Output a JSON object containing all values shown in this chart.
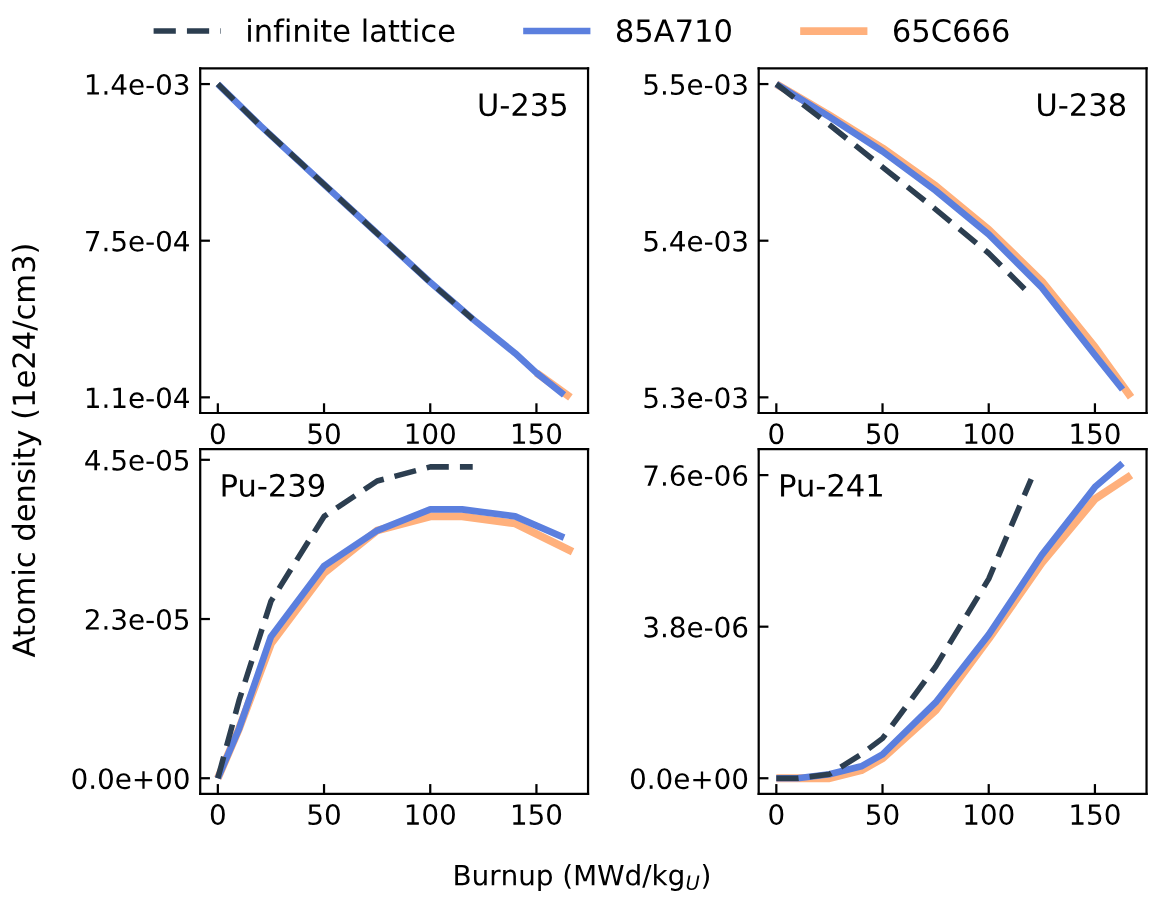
{
  "chart_data": [
    {
      "type": "line",
      "title": "U-235",
      "xlabel": "Burnup (MWd/kg$_{U}$)",
      "ylabel": "Atomic density (1e24/cm3)",
      "legend": "top",
      "xlim": [
        -8.3,
        174.3
      ],
      "xticks": [
        0,
        50,
        100,
        150
      ],
      "ylim": [
        4.6e-05,
        0.001454
      ],
      "yticks": [
        {
          "value": 0.00139,
          "label": "1.4e-03"
        },
        {
          "value": 0.00075,
          "label": "7.5e-04"
        },
        {
          "value": 0.00011,
          "label": "1.1e-04"
        }
      ],
      "series": [
        {
          "name": "infinite lattice",
          "color": "#2c3e50",
          "line_style": "dashed",
          "x": [
            0,
            20,
            40,
            60,
            80,
            100,
            120
          ],
          "values": [
            0.00139,
            0.00122,
            0.00106,
            0.0009,
            0.00074,
            0.00058,
            0.00043
          ]
        },
        {
          "name": "85A710",
          "color": "#5b7fde",
          "line_style": "solid",
          "x": [
            0,
            20,
            40,
            60,
            80,
            100,
            120,
            140,
            150,
            163
          ],
          "values": [
            0.00139,
            0.00122,
            0.00106,
            0.0009,
            0.00074,
            0.00058,
            0.00043,
            0.00029,
            0.00021,
            0.00012
          ]
        },
        {
          "name": "65C666",
          "color": "#ffb07c",
          "line_style": "solid",
          "x": [
            150,
            166
          ],
          "values": [
            0.00021,
            0.00011
          ]
        }
      ]
    },
    {
      "type": "line",
      "title": "U-238",
      "xlim": [
        -8.3,
        174.3
      ],
      "xticks": [
        0,
        50,
        100,
        150
      ],
      "ylim": [
        0.00529,
        0.00551
      ],
      "yticks": [
        {
          "value": 0.0055,
          "label": "5.5e-03"
        },
        {
          "value": 0.0054,
          "label": "5.4e-03"
        },
        {
          "value": 0.0053,
          "label": "5.3e-03"
        }
      ],
      "series": [
        {
          "color": "#2c3e50",
          "line_style": "dashed",
          "x": [
            0,
            25,
            50,
            75,
            100,
            120
          ],
          "values": [
            0.0055,
            0.005474,
            0.005447,
            0.00542,
            0.005392,
            0.005365
          ]
        },
        {
          "color": "#5b7fde",
          "line_style": "solid",
          "x": [
            0,
            25,
            50,
            75,
            100,
            125,
            150,
            163
          ],
          "values": [
            0.0055,
            0.005479,
            0.005457,
            0.005432,
            0.005404,
            0.00537,
            0.005327,
            0.005305
          ]
        },
        {
          "color": "#ffb07c",
          "line_style": "solid",
          "x": [
            0,
            25,
            50,
            75,
            100,
            125,
            150,
            167
          ],
          "values": [
            0.0055,
            0.00548,
            0.005459,
            0.005435,
            0.005407,
            0.005374,
            0.005332,
            0.0053
          ]
        }
      ]
    },
    {
      "type": "line",
      "title": "Pu-239",
      "xlim": [
        -8.3,
        174.3
      ],
      "xticks": [
        0,
        50,
        100,
        150
      ],
      "ylim": [
        -2.2e-06,
        4.65e-05
      ],
      "yticks": [
        {
          "value": 4.5e-05,
          "label": "4.5e-05"
        },
        {
          "value": 2.25e-05,
          "label": "2.3e-05"
        },
        {
          "value": 0,
          "label": "0.0e+00"
        }
      ],
      "series": [
        {
          "color": "#2c3e50",
          "line_style": "dashed",
          "x": [
            0,
            10,
            25,
            50,
            75,
            100,
            110,
            120
          ],
          "values": [
            0,
            1.1e-05,
            2.5e-05,
            3.7e-05,
            4.2e-05,
            4.4e-05,
            4.4e-05,
            4.4e-05
          ]
        },
        {
          "color": "#5b7fde",
          "line_style": "solid",
          "x": [
            0,
            10,
            25,
            50,
            75,
            100,
            115,
            140,
            163
          ],
          "values": [
            0,
            7e-06,
            2e-05,
            3e-05,
            3.5e-05,
            3.8e-05,
            3.8e-05,
            3.7e-05,
            3.4e-05
          ]
        },
        {
          "color": "#ffb07c",
          "line_style": "solid",
          "x": [
            0,
            10,
            25,
            50,
            75,
            100,
            115,
            140,
            167
          ],
          "values": [
            0,
            7e-06,
            1.9e-05,
            2.9e-05,
            3.5e-05,
            3.7e-05,
            3.7e-05,
            3.6e-05,
            3.2e-05
          ]
        }
      ]
    },
    {
      "type": "line",
      "title": "Pu-241",
      "xlim": [
        -8.3,
        174.3
      ],
      "xticks": [
        0,
        50,
        100,
        150
      ],
      "ylim": [
        -3.9e-07,
        8.25e-06
      ],
      "yticks": [
        {
          "value": 7.6e-06,
          "label": "7.6e-06"
        },
        {
          "value": 3.8e-06,
          "label": "3.8e-06"
        },
        {
          "value": 0,
          "label": "0.0e+00"
        }
      ],
      "series": [
        {
          "color": "#2c3e50",
          "line_style": "dashed",
          "x": [
            0,
            10,
            25,
            40,
            50,
            75,
            100,
            120
          ],
          "values": [
            0,
            0,
            1e-07,
            6e-07,
            1e-06,
            2.8e-06,
            5e-06,
            7.5e-06
          ]
        },
        {
          "color": "#5b7fde",
          "line_style": "solid",
          "x": [
            0,
            10,
            25,
            40,
            50,
            75,
            100,
            125,
            150,
            163
          ],
          "values": [
            0,
            0,
            1e-07,
            3e-07,
            6e-07,
            1.9e-06,
            3.6e-06,
            5.6e-06,
            7.3e-06,
            7.9e-06
          ]
        },
        {
          "color": "#ffb07c",
          "line_style": "solid",
          "x": [
            0,
            10,
            25,
            40,
            50,
            75,
            100,
            125,
            150,
            167
          ],
          "values": [
            0,
            0,
            0,
            2e-07,
            5e-07,
            1.7e-06,
            3.5e-06,
            5.4e-06,
            7e-06,
            7.6e-06
          ]
        }
      ]
    }
  ]
}
